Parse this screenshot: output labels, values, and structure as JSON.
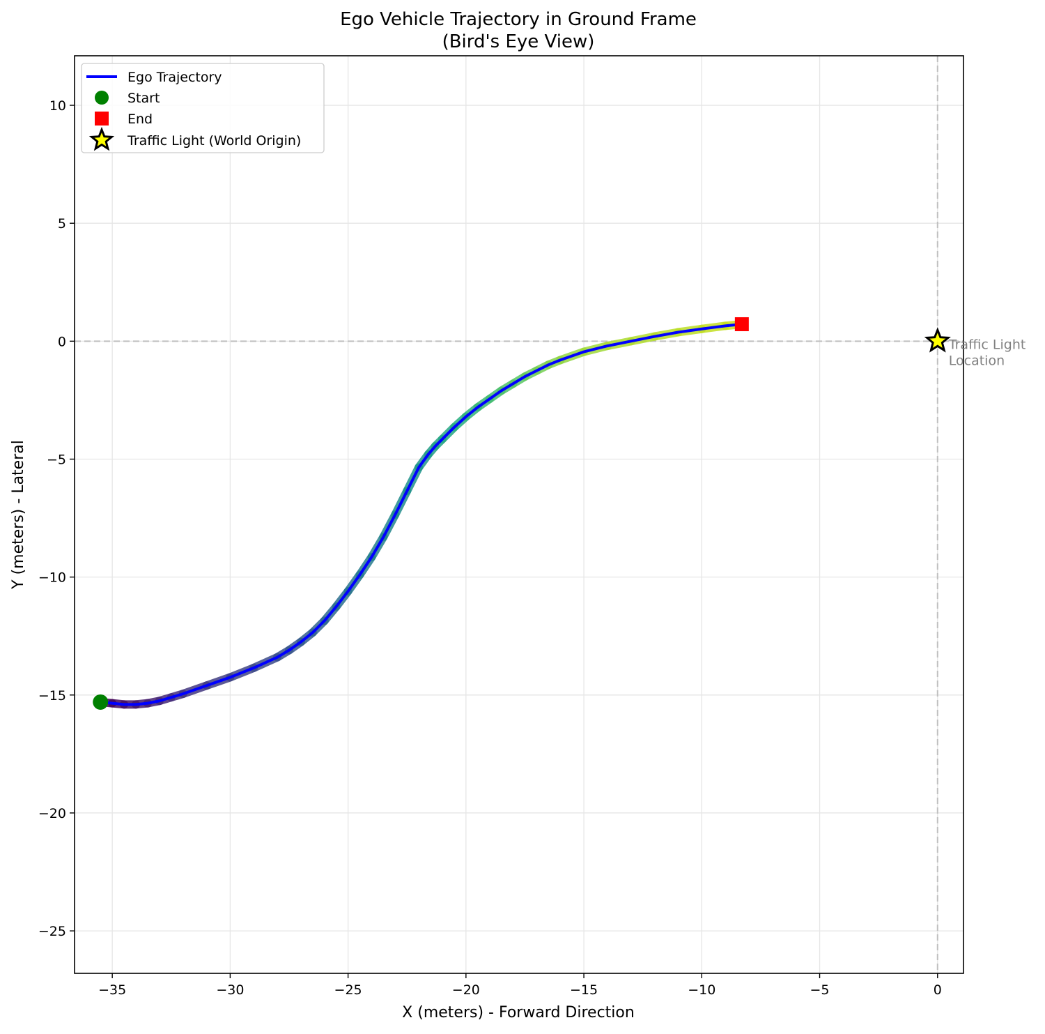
{
  "chart_data": {
    "type": "line",
    "title": "Ego Vehicle Trajectory in Ground Frame",
    "subtitle": "(Bird's Eye View)",
    "xlabel": "X (meters) - Forward Direction",
    "ylabel": "Y (meters) - Lateral",
    "xlim": [
      -36.6,
      1.1
    ],
    "ylim": [
      -26.8,
      12.1
    ],
    "x_ticks": [
      -35,
      -30,
      -25,
      -20,
      -15,
      -10,
      -5,
      0
    ],
    "y_ticks": [
      10,
      5,
      0,
      -5,
      -10,
      -15,
      -20,
      -25
    ],
    "x_tick_labels": [
      "−35",
      "−30",
      "−25",
      "−20",
      "−15",
      "−10",
      "−5",
      "0"
    ],
    "y_tick_labels": [
      "10",
      "5",
      "0",
      "−5",
      "−10",
      "−15",
      "−20",
      "−25"
    ],
    "grid": true,
    "legend_position": "top-left",
    "series": [
      {
        "name": "Ego Trajectory",
        "color": "#0000ff",
        "x": [
          -35.5,
          -35.0,
          -34.5,
          -34.0,
          -33.5,
          -33.0,
          -32.5,
          -32.0,
          -31.0,
          -30.0,
          -29.0,
          -28.0,
          -27.5,
          -27.0,
          -26.5,
          -26.0,
          -25.5,
          -25.0,
          -24.5,
          -24.0,
          -23.5,
          -23.0,
          -22.5,
          -22.0,
          -21.6,
          -21.3,
          -21.0,
          -20.5,
          -20.0,
          -19.5,
          -19.0,
          -18.5,
          -18.0,
          -17.5,
          -17.0,
          -16.5,
          -16.0,
          -15.0,
          -14.0,
          -13.0,
          -12.0,
          -11.0,
          -10.0,
          -9.0,
          -8.3
        ],
        "y": [
          -15.3,
          -15.35,
          -15.4,
          -15.4,
          -15.35,
          -15.25,
          -15.1,
          -14.95,
          -14.6,
          -14.25,
          -13.85,
          -13.4,
          -13.1,
          -12.75,
          -12.35,
          -11.85,
          -11.25,
          -10.6,
          -9.9,
          -9.15,
          -8.3,
          -7.35,
          -6.35,
          -5.35,
          -4.8,
          -4.45,
          -4.15,
          -3.65,
          -3.2,
          -2.8,
          -2.45,
          -2.1,
          -1.8,
          -1.5,
          -1.25,
          -1.0,
          -0.8,
          -0.45,
          -0.2,
          0.0,
          0.2,
          0.38,
          0.52,
          0.65,
          0.72
        ]
      }
    ],
    "markers": {
      "start": {
        "label": "Start",
        "x": -35.5,
        "y": -15.3,
        "color": "#008000"
      },
      "end": {
        "label": "End",
        "x": -8.3,
        "y": 0.72,
        "color": "#ff0000"
      },
      "traffic_light": {
        "label": "Traffic Light (World Origin)",
        "x": 0,
        "y": 0,
        "fill": "#ffff00",
        "edge": "#000000"
      }
    },
    "annotation": {
      "lines": [
        "Traffic Light",
        "Location"
      ],
      "x": 0,
      "y": 0
    },
    "reference_lines": {
      "x": 0,
      "y": 0,
      "color": "#bfbfbf"
    }
  }
}
